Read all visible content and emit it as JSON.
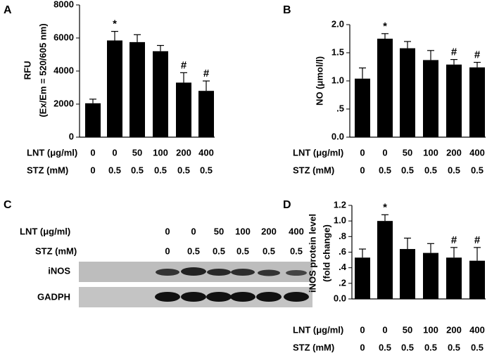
{
  "chart_data": [
    {
      "type": "bar",
      "panel": "A",
      "ylabel": [
        "RFU",
        "(Ex/Em = 520/605 nm)"
      ],
      "color": "#000000",
      "values": [
        2050,
        5850,
        5750,
        5200,
        3300,
        2800
      ],
      "errors": [
        250,
        550,
        450,
        350,
        600,
        600
      ],
      "markers": [
        null,
        "*",
        null,
        null,
        "#",
        "#"
      ],
      "ylim": [
        0,
        8000
      ],
      "yticks": [
        0,
        2000,
        4000,
        6000,
        8000
      ],
      "conditions": [
        {
          "label": "LNT (μg/ml)",
          "values": [
            "0",
            "0",
            "50",
            "100",
            "200",
            "400"
          ]
        },
        {
          "label": "STZ (mM)",
          "values": [
            "0",
            "0.5",
            "0.5",
            "0.5",
            "0.5",
            "0.5"
          ]
        }
      ]
    },
    {
      "type": "bar",
      "panel": "B",
      "ylabel": [
        "NO (μmol/l)"
      ],
      "color": "#000000",
      "values": [
        1.04,
        1.75,
        1.58,
        1.37,
        1.29,
        1.24
      ],
      "errors": [
        0.19,
        0.09,
        0.12,
        0.17,
        0.09,
        0.09
      ],
      "markers": [
        null,
        "*",
        null,
        null,
        "#",
        "#"
      ],
      "ylim": [
        0,
        2
      ],
      "yticks": [
        {
          "value": 0,
          "label": "0.0"
        },
        {
          "value": 0.5,
          "label": ".5"
        },
        {
          "value": 1,
          "label": "1.0"
        },
        {
          "value": 1.5,
          "label": "1.5"
        },
        {
          "value": 2,
          "label": "2.0"
        }
      ],
      "conditions": [
        {
          "label": "LNT (μg/ml)",
          "values": [
            "0",
            "0",
            "50",
            "100",
            "200",
            "400"
          ]
        },
        {
          "label": "STZ (mM)",
          "values": [
            "0",
            "0.5",
            "0.5",
            "0.5",
            "0.5",
            "0.5"
          ]
        }
      ]
    },
    {
      "type": "bar",
      "panel": "D",
      "ylabel": [
        "iNOS protein level",
        "(fold change)"
      ],
      "color": "#000000",
      "values": [
        0.53,
        1.0,
        0.64,
        0.59,
        0.53,
        0.49
      ],
      "errors": [
        0.11,
        0.08,
        0.14,
        0.12,
        0.13,
        0.17
      ],
      "markers": [
        null,
        "*",
        null,
        null,
        "#",
        "#"
      ],
      "ylim": [
        0,
        1.2
      ],
      "yticks": [
        {
          "value": 0,
          "label": "0.0"
        },
        {
          "value": 0.2,
          "label": ".2"
        },
        {
          "value": 0.4,
          "label": ".4"
        },
        {
          "value": 0.6,
          "label": ".6"
        },
        {
          "value": 0.8,
          "label": ".8"
        },
        {
          "value": 1,
          "label": "1.0"
        },
        {
          "value": 1.2,
          "label": "1.2"
        }
      ],
      "conditions": [
        {
          "label": "LNT (μg/ml)",
          "values": [
            "0",
            "0",
            "50",
            "100",
            "200",
            "400"
          ]
        },
        {
          "label": "STZ (mM)",
          "values": [
            "0",
            "0.5",
            "0.5",
            "0.5",
            "0.5",
            "0.5"
          ]
        }
      ]
    }
  ],
  "blot": {
    "panel": "C",
    "conditions": [
      {
        "label": "LNT (μg/ml)",
        "values": [
          "0",
          "0",
          "50",
          "100",
          "200",
          "400"
        ]
      },
      {
        "label": "STZ (mM)",
        "values": [
          "0",
          "0.5",
          "0.5",
          "0.5",
          "0.5",
          "0.5"
        ]
      }
    ],
    "bands": [
      "iNOS",
      "GADPH"
    ]
  }
}
